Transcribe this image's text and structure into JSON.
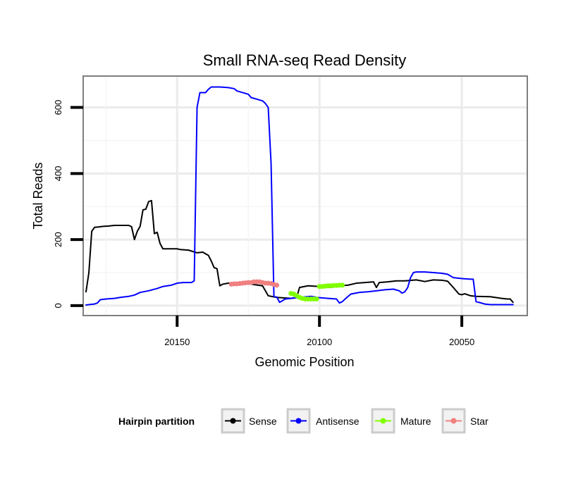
{
  "chart_data": {
    "type": "line",
    "title": "Small RNA-seq Read Density",
    "xlabel": "Genomic Position",
    "ylabel": "Total Reads",
    "xlim": [
      20183,
      20027
    ],
    "ylim": [
      -30,
      695
    ],
    "x_reversed": true,
    "x_ticks": [
      20150,
      20100,
      20050
    ],
    "y_ticks": [
      0,
      200,
      400,
      600
    ],
    "x_tick_labels": [
      "20150",
      "20100",
      "20050"
    ],
    "y_tick_labels": [
      "0",
      "200",
      "400",
      "600"
    ],
    "grid": true,
    "legend": {
      "title": "Hairpin partition",
      "placement": "bottom",
      "entries": [
        "Sense",
        "Antisense",
        "Mature",
        "Star"
      ]
    },
    "series": [
      {
        "name": "Sense",
        "color": "#000000",
        "points": [
          [
            20182,
            42
          ],
          [
            20181,
            100
          ],
          [
            20180,
            225
          ],
          [
            20179,
            237
          ],
          [
            20178,
            238
          ],
          [
            20176,
            240
          ],
          [
            20174,
            241
          ],
          [
            20172,
            243
          ],
          [
            20170,
            243
          ],
          [
            20167,
            243
          ],
          [
            20166,
            239
          ],
          [
            20165,
            200
          ],
          [
            20164,
            225
          ],
          [
            20163,
            240
          ],
          [
            20162,
            290
          ],
          [
            20161,
            292
          ],
          [
            20160,
            315
          ],
          [
            20159,
            318
          ],
          [
            20158,
            218
          ],
          [
            20157,
            222
          ],
          [
            20156,
            188
          ],
          [
            20155,
            172
          ],
          [
            20152,
            172
          ],
          [
            20150,
            172
          ],
          [
            20149,
            170
          ],
          [
            20146,
            168
          ],
          [
            20143,
            160
          ],
          [
            20141,
            162
          ],
          [
            20139,
            152
          ],
          [
            20138,
            135
          ],
          [
            20137,
            115
          ],
          [
            20136,
            112
          ],
          [
            20135,
            60
          ],
          [
            20134,
            65
          ],
          [
            20132,
            68
          ],
          [
            20128,
            70
          ],
          [
            20124,
            65
          ],
          [
            20120,
            60
          ],
          [
            20118,
            30
          ],
          [
            20115,
            25
          ],
          [
            20110,
            22
          ],
          [
            20108,
            25
          ],
          [
            20107,
            55
          ],
          [
            20104,
            60
          ],
          [
            20100,
            58
          ],
          [
            20096,
            55
          ],
          [
            20093,
            60
          ],
          [
            20090,
            62
          ],
          [
            20087,
            68
          ],
          [
            20084,
            70
          ],
          [
            20081,
            72
          ],
          [
            20080,
            55
          ],
          [
            20079,
            70
          ],
          [
            20076,
            72
          ],
          [
            20073,
            75
          ],
          [
            20070,
            75
          ],
          [
            20066,
            78
          ],
          [
            20063,
            73
          ],
          [
            20060,
            78
          ],
          [
            20057,
            77
          ],
          [
            20055,
            74
          ],
          [
            20053,
            55
          ],
          [
            20051,
            35
          ],
          [
            20050,
            33
          ],
          [
            20049,
            36
          ],
          [
            20047,
            30
          ],
          [
            20045,
            28
          ],
          [
            20040,
            27
          ],
          [
            20036,
            22
          ],
          [
            20034,
            20
          ],
          [
            20033,
            20
          ],
          [
            20032,
            10
          ]
        ]
      },
      {
        "name": "Antisense",
        "color": "#0000ff",
        "points": [
          [
            20182,
            2
          ],
          [
            20179,
            5
          ],
          [
            20178,
            8
          ],
          [
            20177,
            18
          ],
          [
            20175,
            20
          ],
          [
            20172,
            22
          ],
          [
            20170,
            25
          ],
          [
            20167,
            28
          ],
          [
            20165,
            32
          ],
          [
            20163,
            40
          ],
          [
            20160,
            45
          ],
          [
            20157,
            52
          ],
          [
            20155,
            58
          ],
          [
            20152,
            62
          ],
          [
            20150,
            68
          ],
          [
            20148,
            70
          ],
          [
            20145,
            70
          ],
          [
            20144,
            75
          ],
          [
            20143,
            600
          ],
          [
            20142,
            645
          ],
          [
            20140,
            645
          ],
          [
            20139,
            655
          ],
          [
            20138,
            662
          ],
          [
            20135,
            662
          ],
          [
            20132,
            660
          ],
          [
            20130,
            657
          ],
          [
            20129,
            650
          ],
          [
            20127,
            645
          ],
          [
            20125,
            640
          ],
          [
            20124,
            630
          ],
          [
            20122,
            625
          ],
          [
            20120,
            620
          ],
          [
            20119,
            612
          ],
          [
            20118,
            600
          ],
          [
            20117,
            430
          ],
          [
            20116,
            28
          ],
          [
            20115,
            26
          ],
          [
            20114,
            10
          ],
          [
            20112,
            20
          ],
          [
            20110,
            22
          ],
          [
            20107,
            25
          ],
          [
            20103,
            28
          ],
          [
            20100,
            24
          ],
          [
            20097,
            22
          ],
          [
            20094,
            20
          ],
          [
            20093,
            8
          ],
          [
            20092,
            12
          ],
          [
            20091,
            20
          ],
          [
            20089,
            35
          ],
          [
            20086,
            40
          ],
          [
            20083,
            42
          ],
          [
            20080,
            45
          ],
          [
            20077,
            48
          ],
          [
            20074,
            50
          ],
          [
            20072,
            45
          ],
          [
            20071,
            38
          ],
          [
            20070,
            42
          ],
          [
            20069,
            55
          ],
          [
            20068,
            85
          ],
          [
            20067,
            100
          ],
          [
            20066,
            102
          ],
          [
            20063,
            102
          ],
          [
            20060,
            100
          ],
          [
            20057,
            98
          ],
          [
            20055,
            95
          ],
          [
            20053,
            85
          ],
          [
            20050,
            82
          ],
          [
            20047,
            80
          ],
          [
            20046,
            80
          ],
          [
            20045,
            12
          ],
          [
            20044,
            10
          ],
          [
            20042,
            5
          ],
          [
            20040,
            3
          ],
          [
            20032,
            3
          ]
        ]
      },
      {
        "name": "Mature",
        "color": "#80ff00",
        "points": [
          [
            20110,
            37
          ],
          [
            20109,
            35
          ],
          [
            20108,
            30
          ],
          [
            20107,
            25
          ],
          [
            20106,
            22
          ],
          [
            20105,
            20
          ],
          [
            20104,
            20
          ],
          [
            20103,
            20
          ],
          [
            20102,
            20
          ],
          [
            20101,
            20
          ]
        ]
      },
      {
        "name": "Mature",
        "color": "#80ff00",
        "points": [
          [
            20100,
            58
          ],
          [
            20099,
            58
          ],
          [
            20098,
            59
          ],
          [
            20097,
            60
          ],
          [
            20096,
            60
          ],
          [
            20095,
            61
          ],
          [
            20094,
            61
          ],
          [
            20093,
            62
          ],
          [
            20092,
            62
          ]
        ]
      },
      {
        "name": "Star",
        "color": "#f08080",
        "points": [
          [
            20131,
            65
          ],
          [
            20130,
            66
          ],
          [
            20129,
            66
          ],
          [
            20128,
            67
          ],
          [
            20127,
            68
          ],
          [
            20126,
            69
          ],
          [
            20125,
            70
          ],
          [
            20124,
            70
          ],
          [
            20123,
            72
          ],
          [
            20122,
            72
          ],
          [
            20121,
            72
          ],
          [
            20120,
            70
          ],
          [
            20119,
            68
          ],
          [
            20118,
            68
          ],
          [
            20117,
            67
          ],
          [
            20116,
            64
          ],
          [
            20115,
            62
          ]
        ]
      }
    ]
  }
}
